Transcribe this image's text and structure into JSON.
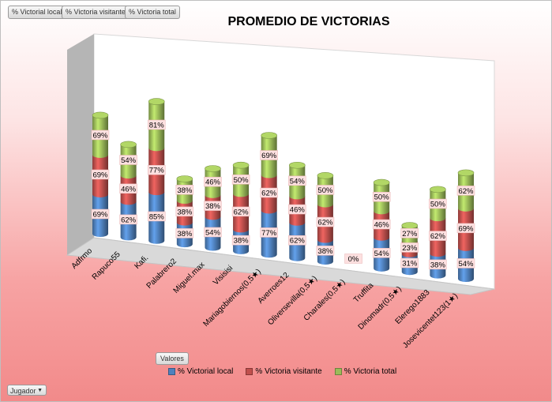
{
  "filter_buttons": [
    "% Victorial local",
    "% Victoria visitante",
    "% Victoria total"
  ],
  "values_button": "Valores",
  "row_field_button": "Jugador",
  "colors": {
    "local": "#4f81bd",
    "visitante": "#c0504d",
    "total": "#9bbb59",
    "label_bg": "#fde0e0"
  },
  "chart_data": {
    "type": "bar",
    "stacked": true,
    "style": "3d-cylinder",
    "title": "PROMEDIO DE VICTORIAS",
    "categories": [
      "Adfrmo",
      "Rapuco55",
      "Kafi.",
      "Palabrero2",
      "Miguel.max",
      "Visisisi",
      "Mariagobiernos(0,5★)",
      "Averroes12",
      "Oliversevilla(0,5★)",
      "Charales(0,5★)",
      "Truffita",
      "Dinomadr(0,5★)",
      "Elerego1883",
      "Josevicentet123(1★)"
    ],
    "series": [
      {
        "name": "% Victorial local",
        "values": [
          "69%",
          "62%",
          "85%",
          "38%",
          "54%",
          "38%",
          "77%",
          "62%",
          "38%",
          "0%",
          "54%",
          "31%",
          "38%",
          "54%"
        ]
      },
      {
        "name": "% Victoria visitante",
        "values": [
          "69%",
          "46%",
          "77%",
          "38%",
          "38%",
          "62%",
          "62%",
          "46%",
          "62%",
          "",
          "46%",
          "23%",
          "62%",
          "69%"
        ]
      },
      {
        "name": "% Victoria total",
        "values": [
          "69%",
          "54%",
          "81%",
          "38%",
          "46%",
          "50%",
          "69%",
          "54%",
          "50%",
          "",
          "50%",
          "27%",
          "50%",
          "62%"
        ]
      }
    ],
    "legend_position": "bottom"
  }
}
